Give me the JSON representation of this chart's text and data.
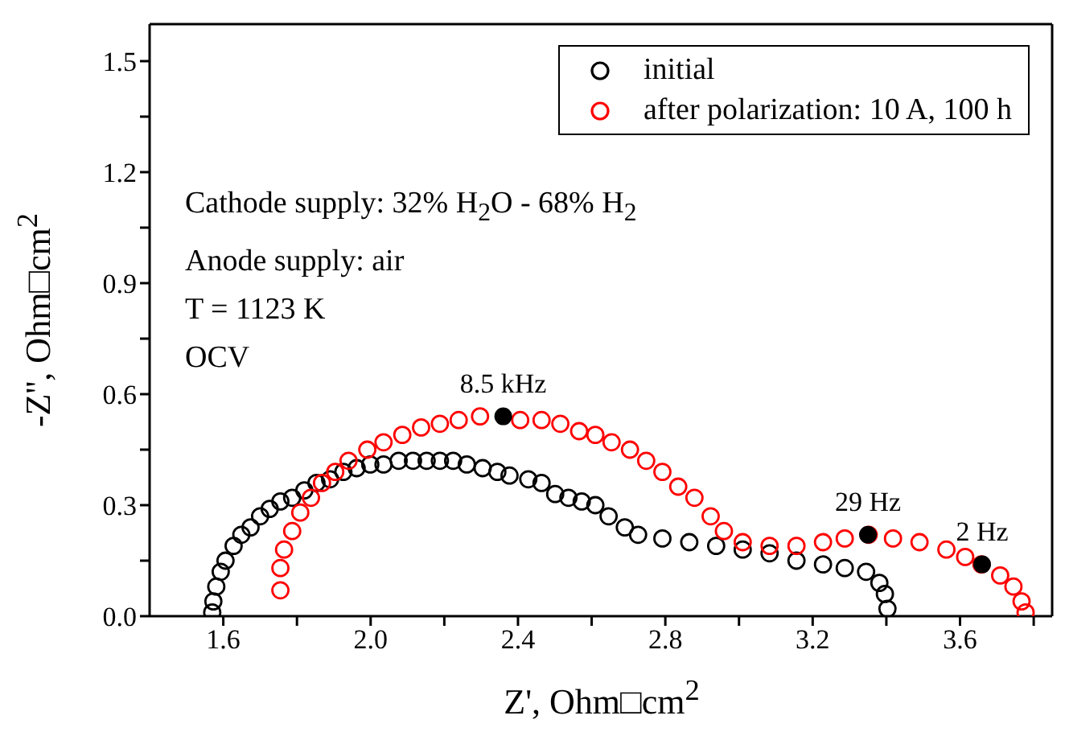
{
  "chart_data": {
    "type": "scatter",
    "xlabel": "Z', Ohm□cm$^{2}$",
    "ylabel": "-Z'', Ohm□cm$^{2}$",
    "xlim": [
      1.4,
      3.85
    ],
    "ylim": [
      0,
      1.6
    ],
    "xticks": [
      1.6,
      {
        "value": 1.8,
        "label": null
      },
      {
        "value": 2,
        "label": "2.0"
      },
      {
        "value": 2.2,
        "label": null
      },
      2.4,
      {
        "value": 2.6,
        "label": null
      },
      2.8,
      {
        "value": 3,
        "label": null
      },
      3.2,
      {
        "value": 3.4,
        "label": null
      },
      3.6,
      {
        "value": 3.8,
        "label": null
      }
    ],
    "yticks": [
      {
        "value": 0,
        "label": "0.0"
      },
      {
        "value": 0.15,
        "label": null
      },
      0.3,
      {
        "value": 0.45,
        "label": null
      },
      0.6,
      {
        "value": 0.75,
        "label": null
      },
      0.9,
      {
        "value": 1.05,
        "label": null
      },
      1.2,
      {
        "value": 1.35,
        "label": null
      },
      1.5
    ],
    "legend": "top right",
    "marker": "circle",
    "series": [
      {
        "name": "initial",
        "color": "#000000",
        "x": [
          1.57,
          1.573,
          1.581,
          1.593,
          1.606,
          1.628,
          1.649,
          1.674,
          1.7,
          1.726,
          1.755,
          1.787,
          1.82,
          1.853,
          1.89,
          1.926,
          1.962,
          1.999,
          2.035,
          2.076,
          2.115,
          2.152,
          2.188,
          2.224,
          2.261,
          2.304,
          2.344,
          2.377,
          2.428,
          2.464,
          2.501,
          2.537,
          2.573,
          2.61,
          2.646,
          2.69,
          2.726,
          2.792,
          2.865,
          2.938,
          3.01,
          3.083,
          3.156,
          3.228,
          3.287,
          3.345,
          3.381,
          3.396,
          3.403
        ],
        "values": [
          0.01,
          0.04,
          0.08,
          0.12,
          0.15,
          0.19,
          0.22,
          0.24,
          0.27,
          0.29,
          0.31,
          0.32,
          0.34,
          0.36,
          0.37,
          0.39,
          0.4,
          0.41,
          0.41,
          0.42,
          0.42,
          0.42,
          0.42,
          0.42,
          0.41,
          0.4,
          0.39,
          0.38,
          0.37,
          0.36,
          0.33,
          0.32,
          0.31,
          0.3,
          0.27,
          0.24,
          0.22,
          0.21,
          0.2,
          0.19,
          0.18,
          0.17,
          0.15,
          0.14,
          0.13,
          0.12,
          0.09,
          0.06,
          0.02
        ]
      },
      {
        "name": "after polarization: 10 A, 100 h",
        "color": "#ff0000",
        "x": [
          1.755,
          1.755,
          1.765,
          1.787,
          1.809,
          1.838,
          1.868,
          1.904,
          1.94,
          1.991,
          2.035,
          2.086,
          2.137,
          2.188,
          2.239,
          2.297,
          2.352,
          2.406,
          2.464,
          2.515,
          2.566,
          2.61,
          2.654,
          2.704,
          2.748,
          2.792,
          2.835,
          2.879,
          2.923,
          2.959,
          3.01,
          3.083,
          3.156,
          3.228,
          3.287,
          3.352,
          3.418,
          3.49,
          3.563,
          3.614,
          3.658,
          3.709,
          3.745,
          3.767,
          3.778
        ],
        "values": [
          0.07,
          0.13,
          0.18,
          0.23,
          0.28,
          0.32,
          0.36,
          0.39,
          0.42,
          0.45,
          0.47,
          0.49,
          0.51,
          0.52,
          0.53,
          0.54,
          null,
          0.53,
          0.53,
          0.52,
          0.5,
          0.49,
          0.47,
          0.45,
          0.42,
          0.39,
          0.35,
          0.32,
          0.27,
          0.23,
          0.2,
          0.19,
          0.19,
          0.2,
          0.21,
          0.22,
          0.21,
          0.2,
          0.18,
          0.16,
          0.14,
          0.11,
          0.08,
          0.04,
          0.01
        ]
      }
    ],
    "annotations": [
      "Cathode supply: 32% H$_{2}$O - 68% H$_{2}$",
      "Anode supply: air",
      "T = 1123 K",
      "OCV",
      {
        "text": "8.5 kHz",
        "x": 2.36,
        "y": 0.54
      },
      {
        "text": "29 Hz",
        "x": 3.35,
        "y": 0.22
      },
      {
        "text": "2 Hz",
        "x": 3.66,
        "y": 0.14
      }
    ]
  }
}
